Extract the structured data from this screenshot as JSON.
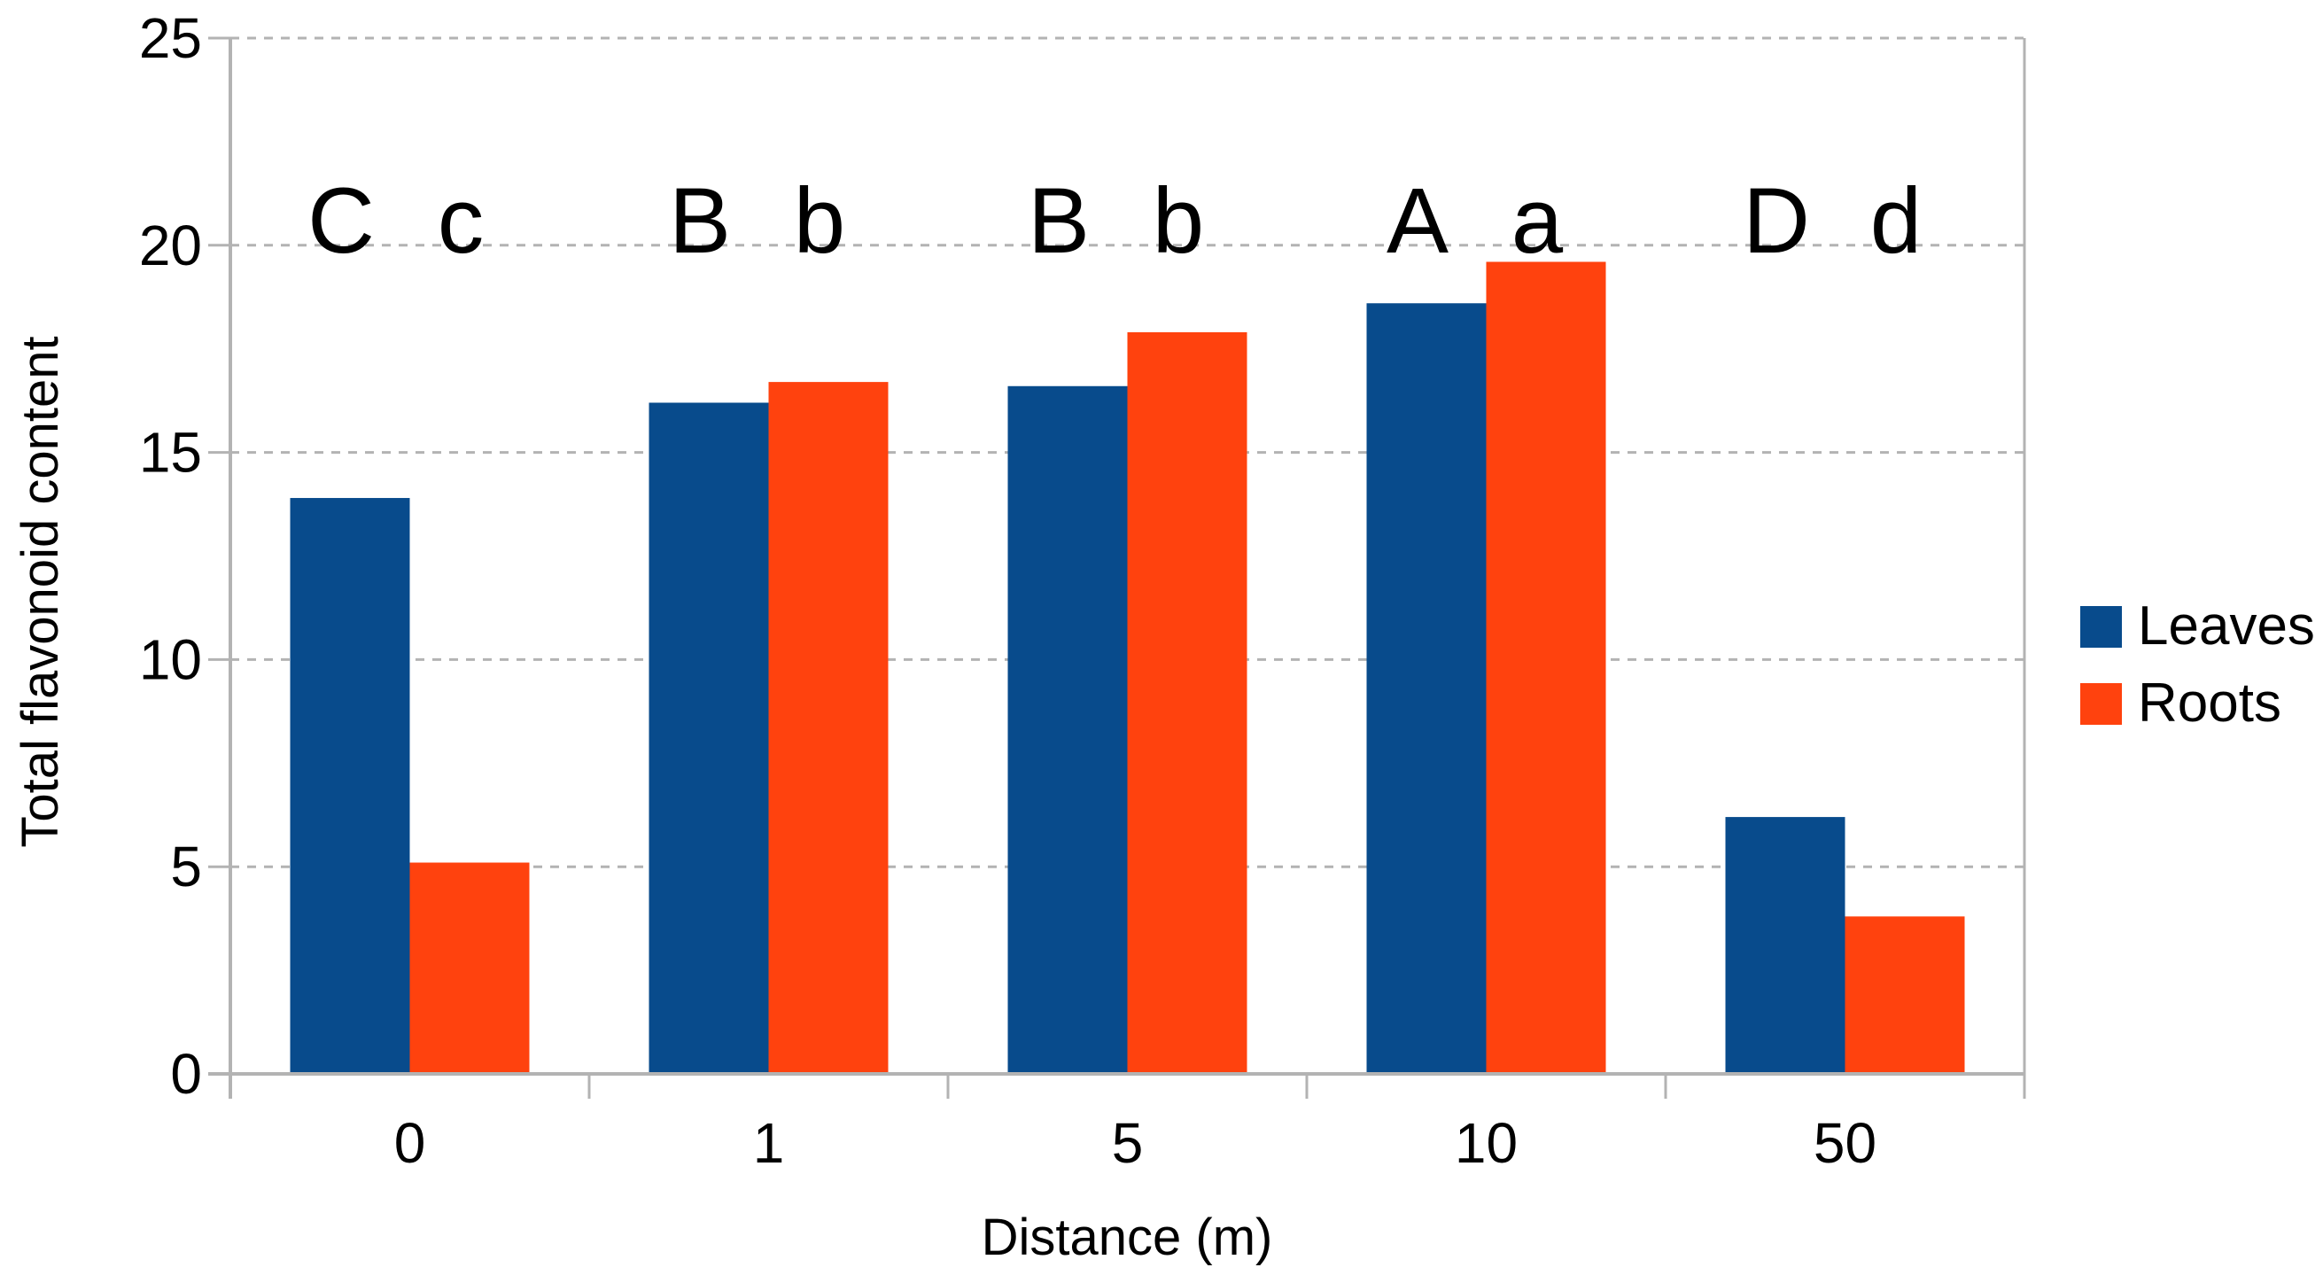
{
  "chart_data": {
    "type": "bar",
    "title": "",
    "xlabel": "Distance (m)",
    "ylabel": "Total flavonoid content",
    "categories": [
      "0",
      "1",
      "5",
      "10",
      "50"
    ],
    "series": [
      {
        "name": "Leaves",
        "color": "#084B8C",
        "values": [
          13.9,
          16.2,
          16.6,
          18.6,
          6.2
        ],
        "letters": [
          "C",
          "B",
          "B",
          "A",
          "D"
        ]
      },
      {
        "name": "Roots",
        "color": "#FF420E",
        "values": [
          5.1,
          16.7,
          17.9,
          19.6,
          3.8
        ],
        "letters": [
          "c",
          "b",
          "b",
          "a",
          "d"
        ]
      }
    ],
    "ylim": [
      0,
      25
    ],
    "yticks": [
      0,
      5,
      10,
      15,
      20,
      25
    ],
    "grid": "horizontal-dashed",
    "legend_position": "right",
    "colors": {
      "axis": "#b3b3b3",
      "gridline": "#b3b3b3",
      "text": "#000000"
    }
  }
}
